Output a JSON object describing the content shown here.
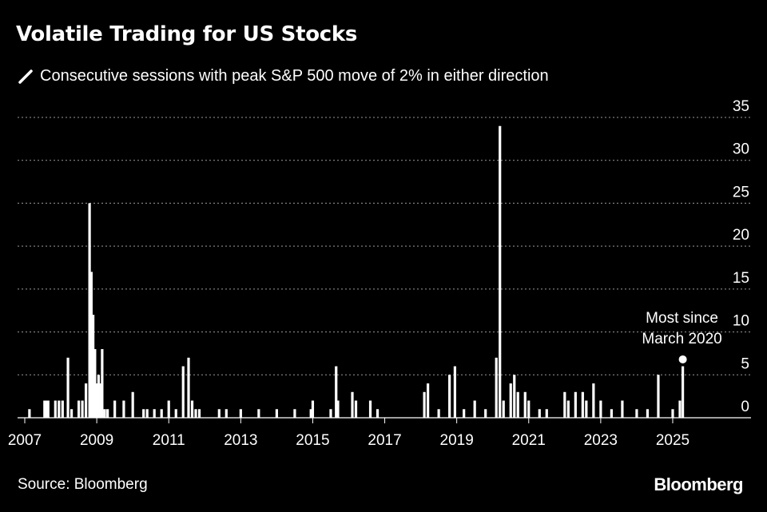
{
  "chart_data": {
    "type": "bar",
    "title": "Volatile Trading for US Stocks",
    "legend": "Consecutive sessions with peak S&P 500 move of 2% in either direction",
    "source": "Source: Bloomberg",
    "brand": "Bloomberg",
    "xlabel": "",
    "ylabel": "",
    "xlim": [
      2006.8,
      2026.5
    ],
    "ylim": [
      0,
      35
    ],
    "y_ticks": [
      0,
      5,
      10,
      15,
      20,
      25,
      30,
      35
    ],
    "x_ticks": [
      2007,
      2009,
      2011,
      2013,
      2015,
      2017,
      2019,
      2021,
      2023,
      2025
    ],
    "x_tick_labels": [
      "2007",
      "2009",
      "2011",
      "2013",
      "2015",
      "2017",
      "2019",
      "2021",
      "2023",
      "2025"
    ],
    "grid": true,
    "color": "#ffffff",
    "x": [
      2007.13,
      2007.55,
      2007.6,
      2007.65,
      2007.85,
      2007.95,
      2008.05,
      2008.2,
      2008.3,
      2008.5,
      2008.6,
      2008.7,
      2008.8,
      2008.85,
      2008.9,
      2008.95,
      2009.0,
      2009.05,
      2009.1,
      2009.15,
      2009.22,
      2009.3,
      2009.5,
      2009.75,
      2010.0,
      2010.3,
      2010.4,
      2010.6,
      2010.8,
      2011.0,
      2011.2,
      2011.4,
      2011.55,
      2011.65,
      2011.75,
      2011.85,
      2012.4,
      2012.6,
      2013.0,
      2013.5,
      2014.0,
      2014.5,
      2014.95,
      2015.0,
      2015.5,
      2015.65,
      2015.7,
      2016.1,
      2016.2,
      2016.6,
      2016.8,
      2018.1,
      2018.2,
      2018.5,
      2018.8,
      2018.95,
      2019.2,
      2019.5,
      2019.8,
      2020.1,
      2020.2,
      2020.3,
      2020.5,
      2020.6,
      2020.7,
      2020.9,
      2021.0,
      2021.3,
      2021.5,
      2022.0,
      2022.1,
      2022.3,
      2022.5,
      2022.6,
      2022.8,
      2023.0,
      2023.3,
      2023.6,
      2024.0,
      2024.3,
      2024.6,
      2025.0,
      2025.2,
      2025.28
    ],
    "values": [
      1,
      2,
      2,
      2,
      2,
      2,
      2,
      7,
      1,
      2,
      2,
      4,
      25,
      17,
      12,
      8,
      4,
      5,
      4,
      8,
      1,
      1,
      2,
      2,
      3,
      1,
      1,
      1,
      1,
      2,
      1,
      6,
      7,
      2,
      1,
      1,
      1,
      1,
      1,
      1,
      1,
      1,
      1,
      2,
      1,
      6,
      2,
      3,
      2,
      2,
      1,
      3,
      4,
      1,
      5,
      6,
      1,
      2,
      1,
      7,
      34,
      2,
      4,
      5,
      3,
      3,
      2,
      1,
      1,
      3,
      2,
      3,
      3,
      2,
      4,
      2,
      1,
      2,
      1,
      1,
      5,
      1,
      2,
      6
    ],
    "annotation": {
      "line1": "Most since",
      "line2": "March 2020",
      "x": 2025.28,
      "y": 6.8
    }
  }
}
